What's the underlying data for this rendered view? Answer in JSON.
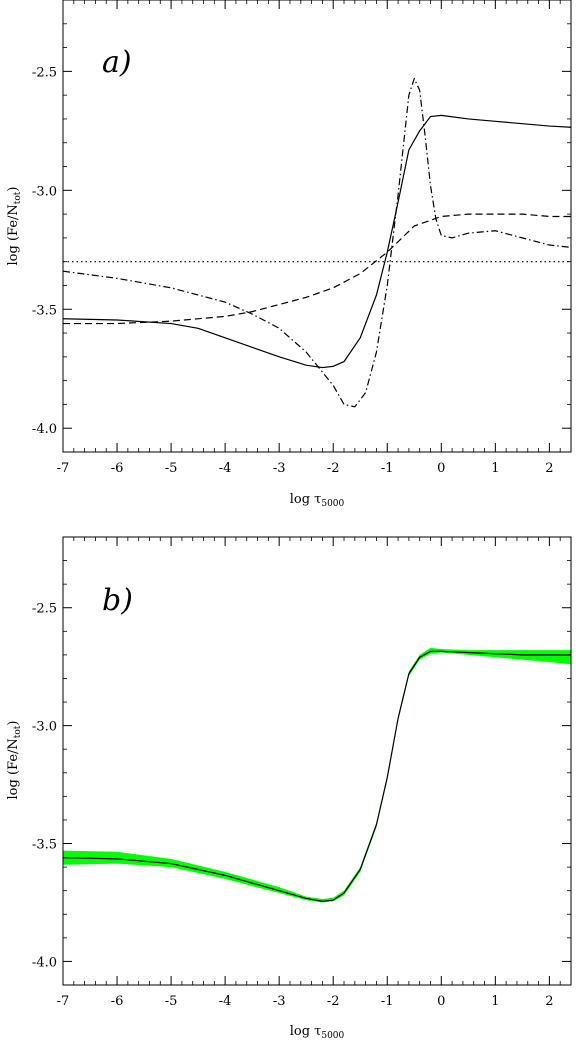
{
  "chart_data": [
    {
      "type": "line",
      "panel_label": "a)",
      "xlabel": "log τ",
      "xlabel_sub": "5000",
      "ylabel": "log (Fe/N",
      "ylabel_sub": "tot",
      "ylabel_end": ")",
      "xlim": [
        -7,
        2.4
      ],
      "ylim": [
        -4.1,
        -2.2
      ],
      "xticks": [
        -7,
        -6,
        -5,
        -4,
        -3,
        -2,
        -1,
        0,
        1,
        2
      ],
      "yticks": [
        -4.0,
        -3.5,
        -3.0,
        -2.5
      ],
      "ytick_labels": [
        "-4.0",
        "-3.5",
        "-3.0",
        "-2.5"
      ],
      "grid": false,
      "series": [
        {
          "style": "solid",
          "color": "#000000",
          "x": [
            -7,
            -6,
            -5,
            -4.5,
            -4,
            -3.5,
            -3,
            -2.5,
            -2.2,
            -2,
            -1.8,
            -1.5,
            -1.2,
            -1,
            -0.8,
            -0.6,
            -0.4,
            -0.3,
            -0.2,
            0,
            0.5,
            1,
            1.5,
            2,
            2.4
          ],
          "y": [
            -3.54,
            -3.545,
            -3.56,
            -3.58,
            -3.62,
            -3.66,
            -3.7,
            -3.735,
            -3.745,
            -3.74,
            -3.72,
            -3.62,
            -3.44,
            -3.26,
            -3.05,
            -2.83,
            -2.75,
            -2.72,
            -2.69,
            -2.685,
            -2.7,
            -2.71,
            -2.72,
            -2.73,
            -2.735
          ]
        },
        {
          "style": "dashed",
          "color": "#000000",
          "x": [
            -7,
            -6,
            -5,
            -4,
            -3.5,
            -3,
            -2.5,
            -2,
            -1.5,
            -1,
            -0.5,
            0,
            0.5,
            1,
            1.5,
            2,
            2.4
          ],
          "y": [
            -3.56,
            -3.56,
            -3.55,
            -3.53,
            -3.51,
            -3.48,
            -3.45,
            -3.41,
            -3.35,
            -3.26,
            -3.15,
            -3.11,
            -3.1,
            -3.1,
            -3.1,
            -3.11,
            -3.11
          ]
        },
        {
          "style": "dashdot",
          "color": "#000000",
          "x": [
            -7,
            -6,
            -5,
            -4,
            -3.5,
            -3,
            -2.5,
            -2,
            -1.8,
            -1.6,
            -1.4,
            -1.2,
            -1,
            -0.8,
            -0.6,
            -0.5,
            -0.4,
            -0.3,
            -0.2,
            -0.1,
            0,
            0.2,
            0.5,
            1,
            1.5,
            2,
            2.4
          ],
          "y": [
            -3.34,
            -3.37,
            -3.41,
            -3.47,
            -3.52,
            -3.58,
            -3.68,
            -3.82,
            -3.9,
            -3.91,
            -3.85,
            -3.68,
            -3.4,
            -3.02,
            -2.6,
            -2.53,
            -2.58,
            -2.77,
            -2.98,
            -3.12,
            -3.19,
            -3.2,
            -3.18,
            -3.17,
            -3.2,
            -3.23,
            -3.24
          ]
        },
        {
          "style": "dotted",
          "color": "#000000",
          "x": [
            -7,
            2.4
          ],
          "y": [
            -3.3,
            -3.3
          ]
        }
      ]
    },
    {
      "type": "area",
      "panel_label": "b)",
      "xlabel": "log τ",
      "xlabel_sub": "5000",
      "ylabel": "log (Fe/N",
      "ylabel_sub": "tot",
      "ylabel_end": ")",
      "xlim": [
        -7,
        2.4
      ],
      "ylim": [
        -4.1,
        -2.2
      ],
      "xticks": [
        -7,
        -6,
        -5,
        -4,
        -3,
        -2,
        -1,
        0,
        1,
        2
      ],
      "yticks": [
        -4.0,
        -3.5,
        -3.0,
        -2.5
      ],
      "ytick_labels": [
        "-4.0",
        "-3.5",
        "-3.0",
        "-2.5"
      ],
      "grid": false,
      "band": {
        "color": "#00ff00",
        "x": [
          -7,
          -6,
          -5,
          -4,
          -3,
          -2.5,
          -2.2,
          -2,
          -1.8,
          -1.5,
          -1.2,
          -1,
          -0.8,
          -0.6,
          -0.4,
          -0.2,
          0,
          0.5,
          1,
          1.5,
          2,
          2.4
        ],
        "y_low": [
          -3.59,
          -3.585,
          -3.6,
          -3.65,
          -3.71,
          -3.74,
          -3.75,
          -3.745,
          -3.72,
          -3.62,
          -3.43,
          -3.23,
          -2.98,
          -2.79,
          -2.72,
          -2.695,
          -2.69,
          -2.7,
          -2.71,
          -2.72,
          -2.73,
          -2.74
        ],
        "y_high": [
          -3.53,
          -3.535,
          -3.565,
          -3.62,
          -3.685,
          -3.725,
          -3.735,
          -3.73,
          -3.7,
          -3.6,
          -3.41,
          -3.21,
          -2.96,
          -2.77,
          -2.7,
          -2.67,
          -2.675,
          -2.68,
          -2.68,
          -2.68,
          -2.68,
          -2.68
        ]
      },
      "series": [
        {
          "style": "solid",
          "color": "#000000",
          "x": [
            -7,
            -6,
            -5,
            -4,
            -3,
            -2.5,
            -2.2,
            -2,
            -1.8,
            -1.5,
            -1.2,
            -1,
            -0.8,
            -0.6,
            -0.4,
            -0.2,
            0,
            0.5,
            1,
            1.5,
            2,
            2.4
          ],
          "y": [
            -3.56,
            -3.565,
            -3.585,
            -3.635,
            -3.7,
            -3.733,
            -3.745,
            -3.74,
            -3.71,
            -3.61,
            -3.42,
            -3.22,
            -2.97,
            -2.78,
            -2.71,
            -2.685,
            -2.685,
            -2.69,
            -2.695,
            -2.7,
            -2.7,
            -2.7
          ]
        }
      ]
    }
  ]
}
